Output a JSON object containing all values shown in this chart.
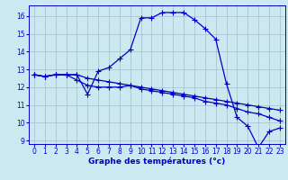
{
  "xlabel": "Graphe des températures (°c)",
  "background_color": "#cce8f0",
  "line_color": "#0000cc",
  "grid_color": "#aabbcc",
  "ylim": [
    8.8,
    16.6
  ],
  "xlim": [
    -0.5,
    23.5
  ],
  "yticks": [
    9,
    10,
    11,
    12,
    13,
    14,
    15,
    16
  ],
  "xticks": [
    0,
    1,
    2,
    3,
    4,
    5,
    6,
    7,
    8,
    9,
    10,
    11,
    12,
    13,
    14,
    15,
    16,
    17,
    18,
    19,
    20,
    21,
    22,
    23
  ],
  "series": [
    [
      12.7,
      12.6,
      12.7,
      12.7,
      12.7,
      11.6,
      12.9,
      13.1,
      13.6,
      14.1,
      15.9,
      15.9,
      16.2,
      16.2,
      16.2,
      15.8,
      15.3,
      14.7,
      12.2,
      10.3,
      9.8,
      8.6,
      9.5,
      9.7
    ],
    [
      12.7,
      12.6,
      12.7,
      12.7,
      12.4,
      12.1,
      12.0,
      12.0,
      12.0,
      12.1,
      11.9,
      11.8,
      11.7,
      11.6,
      11.5,
      11.4,
      11.2,
      11.1,
      11.0,
      10.8,
      10.6,
      10.5,
      10.3,
      10.1
    ],
    [
      12.7,
      12.6,
      12.7,
      12.7,
      12.7,
      12.5,
      12.4,
      12.3,
      12.2,
      12.1,
      12.0,
      11.9,
      11.8,
      11.7,
      11.6,
      11.5,
      11.4,
      11.3,
      11.2,
      11.1,
      11.0,
      10.9,
      10.8,
      10.7
    ]
  ],
  "figsize": [
    3.2,
    2.0
  ],
  "dpi": 100,
  "tick_fontsize": 5.5,
  "xlabel_fontsize": 6.5,
  "linewidth": 0.9,
  "markersize": 2.0
}
